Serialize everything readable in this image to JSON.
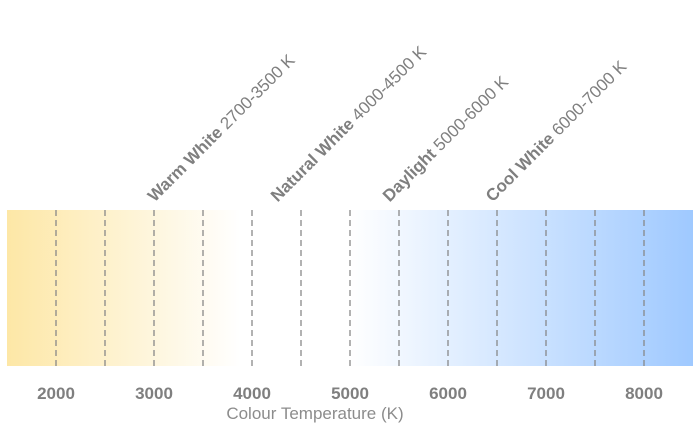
{
  "axis": {
    "title": "Colour Temperature (K)",
    "min": 1500,
    "max": 8500,
    "major_ticks": [
      2000,
      3000,
      4000,
      5000,
      6000,
      7000,
      8000
    ],
    "dashed_lines": [
      2000,
      2500,
      3000,
      3500,
      4000,
      4500,
      5000,
      5500,
      6000,
      6500,
      7000,
      7500,
      8000
    ]
  },
  "ranges": [
    {
      "name": "Warm White",
      "range": "2700-3500 K",
      "anchor": 3000
    },
    {
      "name": "Natural White",
      "range": "4000-4500 K",
      "anchor": 4250
    },
    {
      "name": "Daylight",
      "range": "5000-6000 K",
      "anchor": 5400
    },
    {
      "name": "Cool White",
      "range": "6000-7000 K",
      "anchor": 6450
    }
  ],
  "colors": {
    "warm": "#fde7a6",
    "neutral": "#ffffff",
    "cool": "#9fc9ff",
    "dash": "#888888",
    "text": "#7f7f7f"
  }
}
